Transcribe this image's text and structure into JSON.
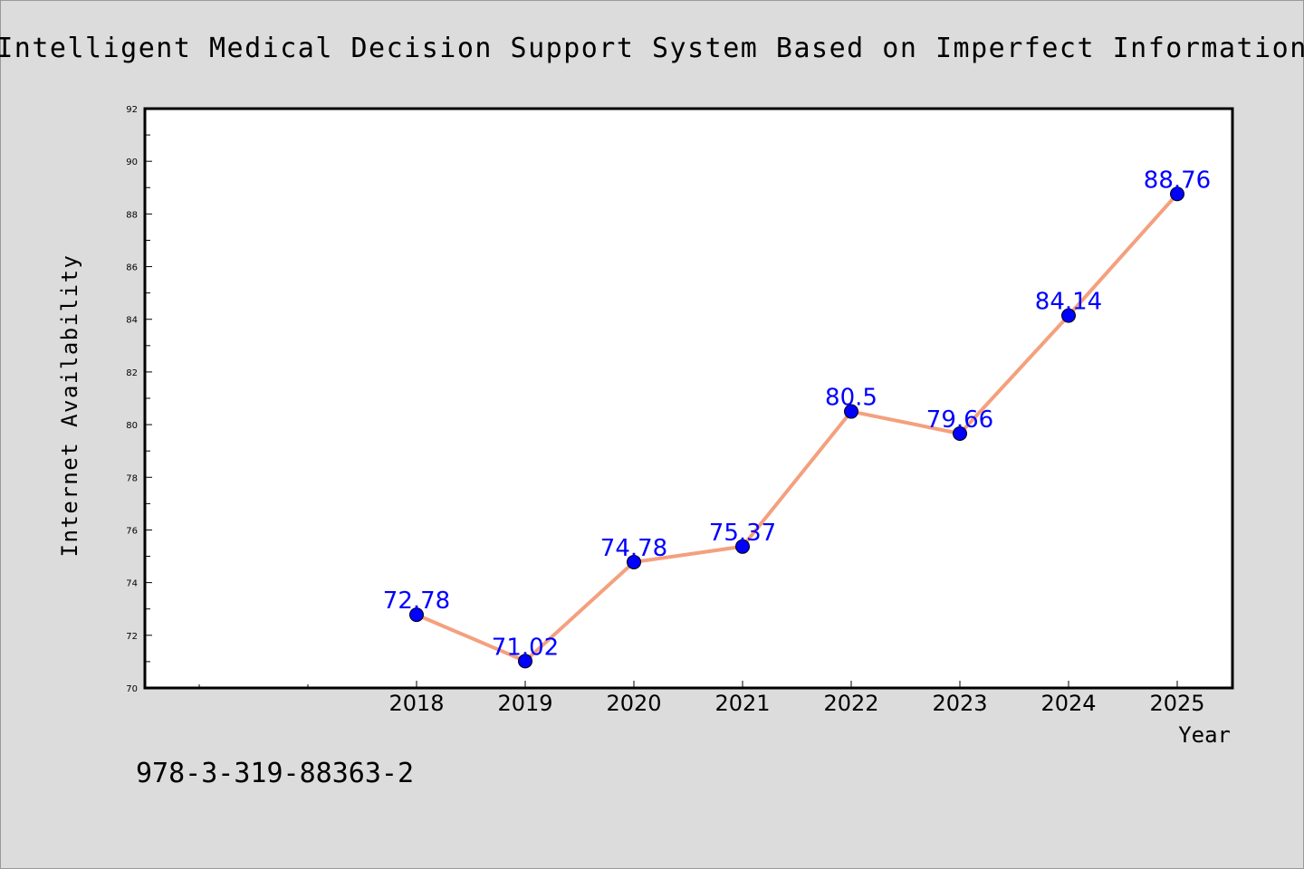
{
  "chart_data": {
    "type": "line",
    "title": "Intelligent Medical Decision Support System Based on Imperfect Information",
    "xlabel": "Year",
    "ylabel": "Internet Availability",
    "footer_text": "978-3-319-88363-2",
    "ylim": [
      70,
      92
    ],
    "y_ticks": [
      "70",
      "72",
      "74",
      "76",
      "78",
      "80",
      "82",
      "84",
      "86",
      "88",
      "90",
      "92"
    ],
    "x_ticks": [
      "2018",
      "2019",
      "2020",
      "2021",
      "2022",
      "2023",
      "2024",
      "2025"
    ],
    "x": [
      2018,
      2019,
      2020,
      2021,
      2022,
      2023,
      2024,
      2025
    ],
    "values": [
      72.78,
      71.02,
      74.78,
      75.37,
      80.5,
      79.66,
      84.14,
      88.76
    ],
    "data_labels": [
      "72.78",
      "71.02",
      "74.78",
      "75.37",
      "80.5",
      "79.66",
      "84.14",
      "88.76"
    ],
    "grid": false,
    "colors": {
      "background": "#dcdcdc",
      "plot_background": "#ffffff",
      "line": "#f4a07e",
      "marker": "#0000ff",
      "data_label": "#0000ff",
      "text": "#000000"
    }
  }
}
